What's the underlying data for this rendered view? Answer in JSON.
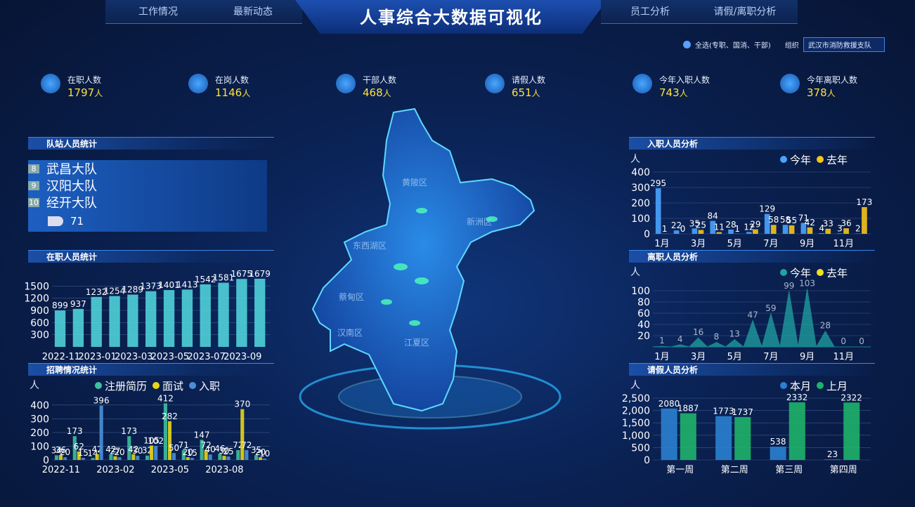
{
  "header": {
    "title": "人事综合大数据可视化",
    "nav_left": [
      "工作情况",
      "最新动态"
    ],
    "nav_right": [
      "员工分析",
      "请假/离职分析"
    ]
  },
  "filter": {
    "checkbox": "全选(专职、国消、干部)",
    "org_label": "组织",
    "org_value": "武汉市消防救援支队"
  },
  "stats": [
    {
      "label": "在职人数",
      "value": 1797,
      "unit": "人"
    },
    {
      "label": "在岗人数",
      "value": 1146,
      "unit": "人"
    },
    {
      "label": "干部人数",
      "value": 468,
      "unit": "人"
    },
    {
      "label": "请假人数",
      "value": 651,
      "unit": "人"
    },
    {
      "label": "今年入职人数",
      "value": 743,
      "unit": "人"
    },
    {
      "label": "今年离职人数",
      "value": 378,
      "unit": "人"
    }
  ],
  "map": {
    "districts": [
      "黄陂区",
      "新洲区",
      "东西湖区",
      "蔡甸区",
      "汉南区",
      "江夏区"
    ]
  },
  "ranking": {
    "title": "队站人员统计",
    "rows": [
      {
        "rank": 8,
        "name": "武昌大队"
      },
      {
        "rank": 9,
        "name": "汉阳大队"
      },
      {
        "rank": 10,
        "name": "经开大队"
      }
    ],
    "value": 71
  },
  "chart_data": [
    {
      "type": "bar",
      "title": "在职人员统计",
      "categories": [
        "2022-11",
        null,
        "2023-01",
        null,
        "2023-03",
        null,
        "2023-05",
        null,
        "2023-07",
        null,
        "2023-09",
        null
      ],
      "values": [
        899,
        937,
        1232,
        1254,
        1289,
        1373,
        1401,
        1413,
        1542,
        1581,
        1675,
        1679
      ],
      "color": "#4fd1d9",
      "ylim": [
        0,
        1800
      ],
      "yticks": [
        300,
        600,
        900,
        1200,
        1500
      ]
    },
    {
      "type": "bar",
      "title": "招聘情况统计",
      "y_label": "人",
      "legend": "top",
      "categories": [
        "2022-11",
        null,
        null,
        "2023-02",
        null,
        null,
        "2023-05",
        null,
        null,
        "2023-08",
        null,
        null
      ],
      "series": [
        {
          "name": "注册简历",
          "color": "#3fbf9f",
          "values": [
            34,
            173,
            14,
            42,
            173,
            32,
            412,
            71,
            147,
            46,
            72,
            35
          ]
        },
        {
          "name": "面试",
          "color": "#e6d619",
          "values": [
            36,
            62,
            42,
            27,
            42,
            105,
            282,
            20,
            72,
            30,
            370,
            20
          ]
        },
        {
          "name": "入职",
          "color": "#4a8fd8",
          "values": [
            20,
            15,
            396,
            20,
            30,
            102,
            50,
            15,
            40,
            25,
            72,
            10
          ]
        }
      ],
      "ylim": [
        0,
        450
      ],
      "yticks": [
        0,
        100,
        200,
        300,
        400
      ]
    },
    {
      "type": "bar",
      "title": "入职人员分析",
      "y_label": "人",
      "legend": "top-right",
      "categories": [
        "1月",
        null,
        "3月",
        null,
        "5月",
        null,
        "7月",
        null,
        "9月",
        null,
        "11月",
        null
      ],
      "series": [
        {
          "name": "今年",
          "color": "#4aa3ff",
          "values": [
            295,
            22,
            35,
            84,
            28,
            12,
            129,
            58,
            71,
            4,
            3,
            2
          ]
        },
        {
          "name": "去年",
          "color": "#f5c518",
          "values": [
            1,
            0,
            25,
            11,
            1,
            29,
            58,
            55,
            42,
            33,
            36,
            173
          ]
        }
      ],
      "ylim": [
        0,
        400
      ],
      "yticks": [
        0,
        100,
        200,
        300,
        400
      ]
    },
    {
      "type": "area",
      "title": "离职人员分析",
      "y_label": "人",
      "legend": "top-right",
      "categories": [
        "1月",
        null,
        "3月",
        null,
        "5月",
        null,
        "7月",
        null,
        "9月",
        null,
        "11月",
        null
      ],
      "series": [
        {
          "name": "今年",
          "color": "#1fa3a3",
          "values": [
            1,
            4,
            16,
            8,
            13,
            47,
            59,
            99,
            103,
            28,
            0,
            0
          ]
        },
        {
          "name": "去年",
          "color": "#f0e020",
          "values": [
            null,
            null,
            null,
            null,
            null,
            null,
            null,
            null,
            null,
            null,
            null,
            null
          ]
        }
      ],
      "ylim": [
        0,
        110
      ],
      "yticks": [
        20,
        40,
        60,
        80,
        100
      ]
    },
    {
      "type": "bar",
      "title": "请假人员分析",
      "y_label": "人",
      "legend": "top-right",
      "categories": [
        "第一周",
        "第二周",
        "第三周",
        "第四周"
      ],
      "series": [
        {
          "name": "本月",
          "color": "#2a7fd0",
          "values": [
            2080,
            1773,
            538,
            23
          ]
        },
        {
          "name": "上月",
          "color": "#1fb36a",
          "values": [
            1887,
            1737,
            2332,
            2322
          ]
        }
      ],
      "ylim": [
        0,
        2500
      ],
      "yticks": [
        0,
        500,
        {
          "value": 1000,
          "label": "1,000"
        },
        {
          "value": 1500,
          "label": "1,500"
        },
        {
          "value": 2000,
          "label": "2,000"
        },
        {
          "value": 2500,
          "label": "2,500"
        }
      ]
    }
  ]
}
